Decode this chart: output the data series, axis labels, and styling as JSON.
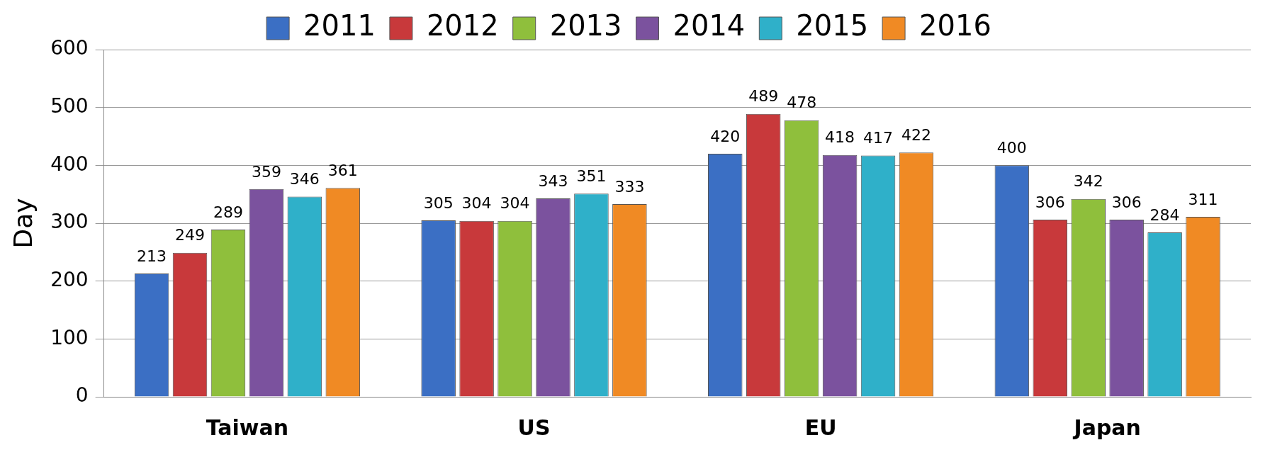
{
  "chart_data": {
    "type": "bar",
    "ylabel": "Day",
    "categories": [
      "Taiwan",
      "US",
      "EU",
      "Japan"
    ],
    "series": [
      {
        "name": "2011",
        "color": "#3b6fc4",
        "values": [
          213,
          305,
          420,
          400
        ]
      },
      {
        "name": "2012",
        "color": "#c8393b",
        "values": [
          249,
          304,
          489,
          306
        ]
      },
      {
        "name": "2013",
        "color": "#8fbf3c",
        "values": [
          289,
          304,
          478,
          342
        ]
      },
      {
        "name": "2014",
        "color": "#7b529e",
        "values": [
          359,
          343,
          418,
          306
        ]
      },
      {
        "name": "2015",
        "color": "#2fb0c9",
        "values": [
          346,
          351,
          417,
          284
        ]
      },
      {
        "name": "2016",
        "color": "#f08a24",
        "values": [
          361,
          333,
          422,
          311
        ]
      }
    ],
    "ylim": [
      0,
      600
    ],
    "yticks": [
      0,
      100,
      200,
      300,
      400,
      500,
      600
    ],
    "grid": "y",
    "legend": "top",
    "data_labels": true
  }
}
